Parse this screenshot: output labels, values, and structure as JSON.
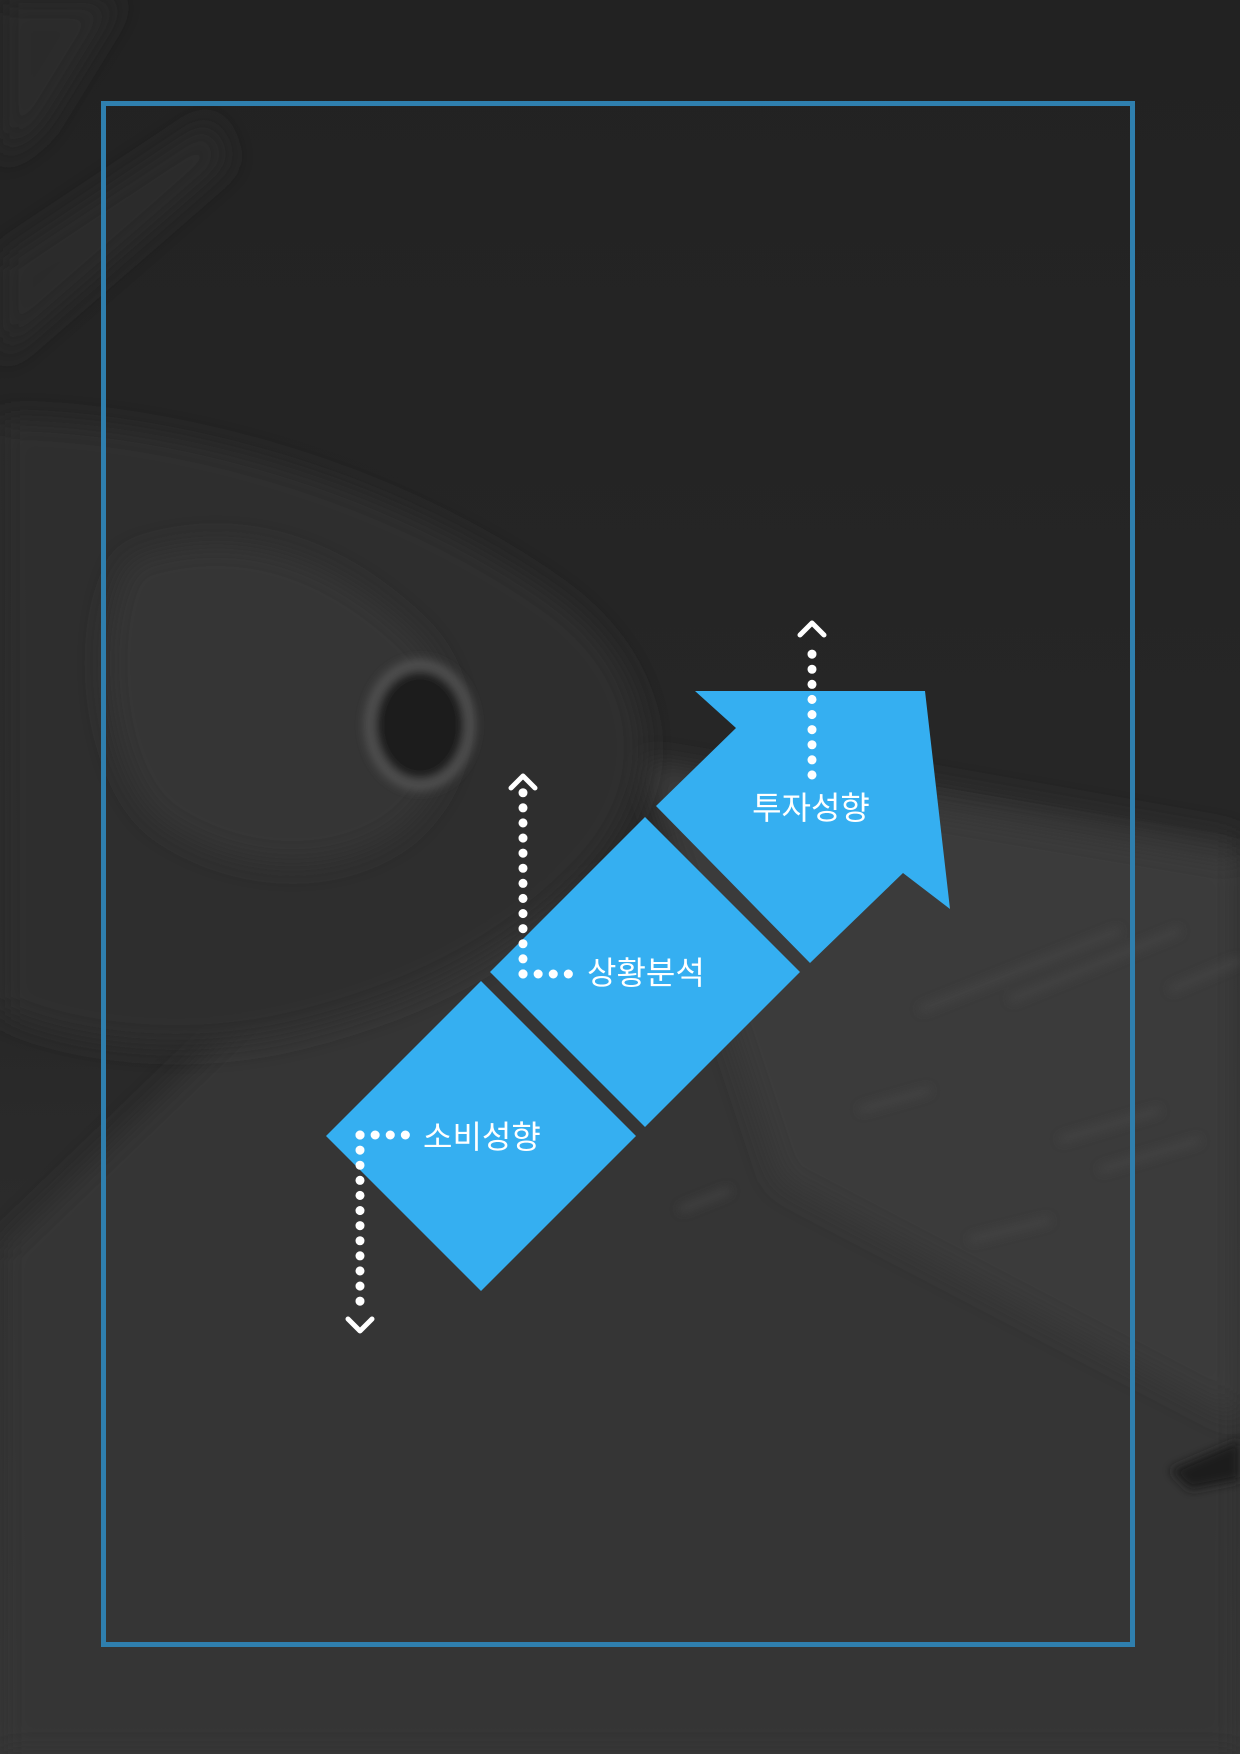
{
  "colors": {
    "background": "#262626",
    "frame": "#2f7fae",
    "shape": "#35aff1",
    "connector": "#ffffff"
  },
  "steps": [
    {
      "label": "소비성향",
      "arrow": "down"
    },
    {
      "label": "상황분석",
      "arrow": "up"
    },
    {
      "label": "투자성향",
      "arrow": "up"
    }
  ]
}
